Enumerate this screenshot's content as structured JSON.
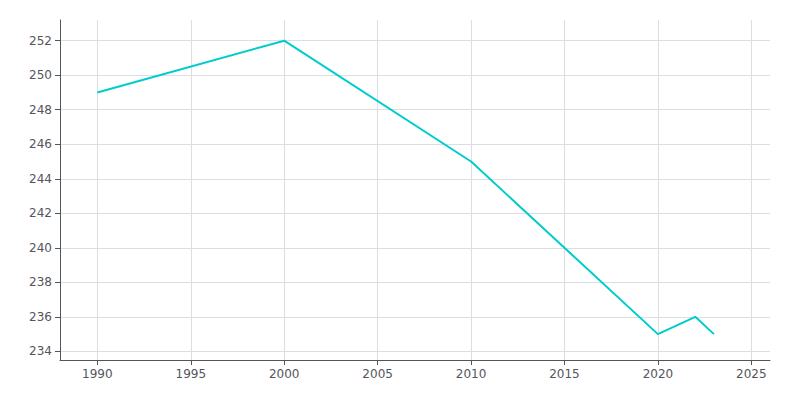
{
  "chart_data": {
    "type": "line",
    "x": [
      1990,
      2000,
      2010,
      2020,
      2022,
      2023
    ],
    "values": [
      249,
      252,
      245,
      235,
      236,
      235
    ],
    "color": "#00CCCC",
    "xlim": [
      1988,
      2026
    ],
    "ylim": [
      233.5,
      253.2
    ],
    "xticks": [
      1990,
      1995,
      2000,
      2005,
      2010,
      2015,
      2020,
      2025
    ],
    "yticks": [
      234,
      236,
      238,
      240,
      242,
      244,
      246,
      248,
      250,
      252
    ],
    "grid": true
  }
}
